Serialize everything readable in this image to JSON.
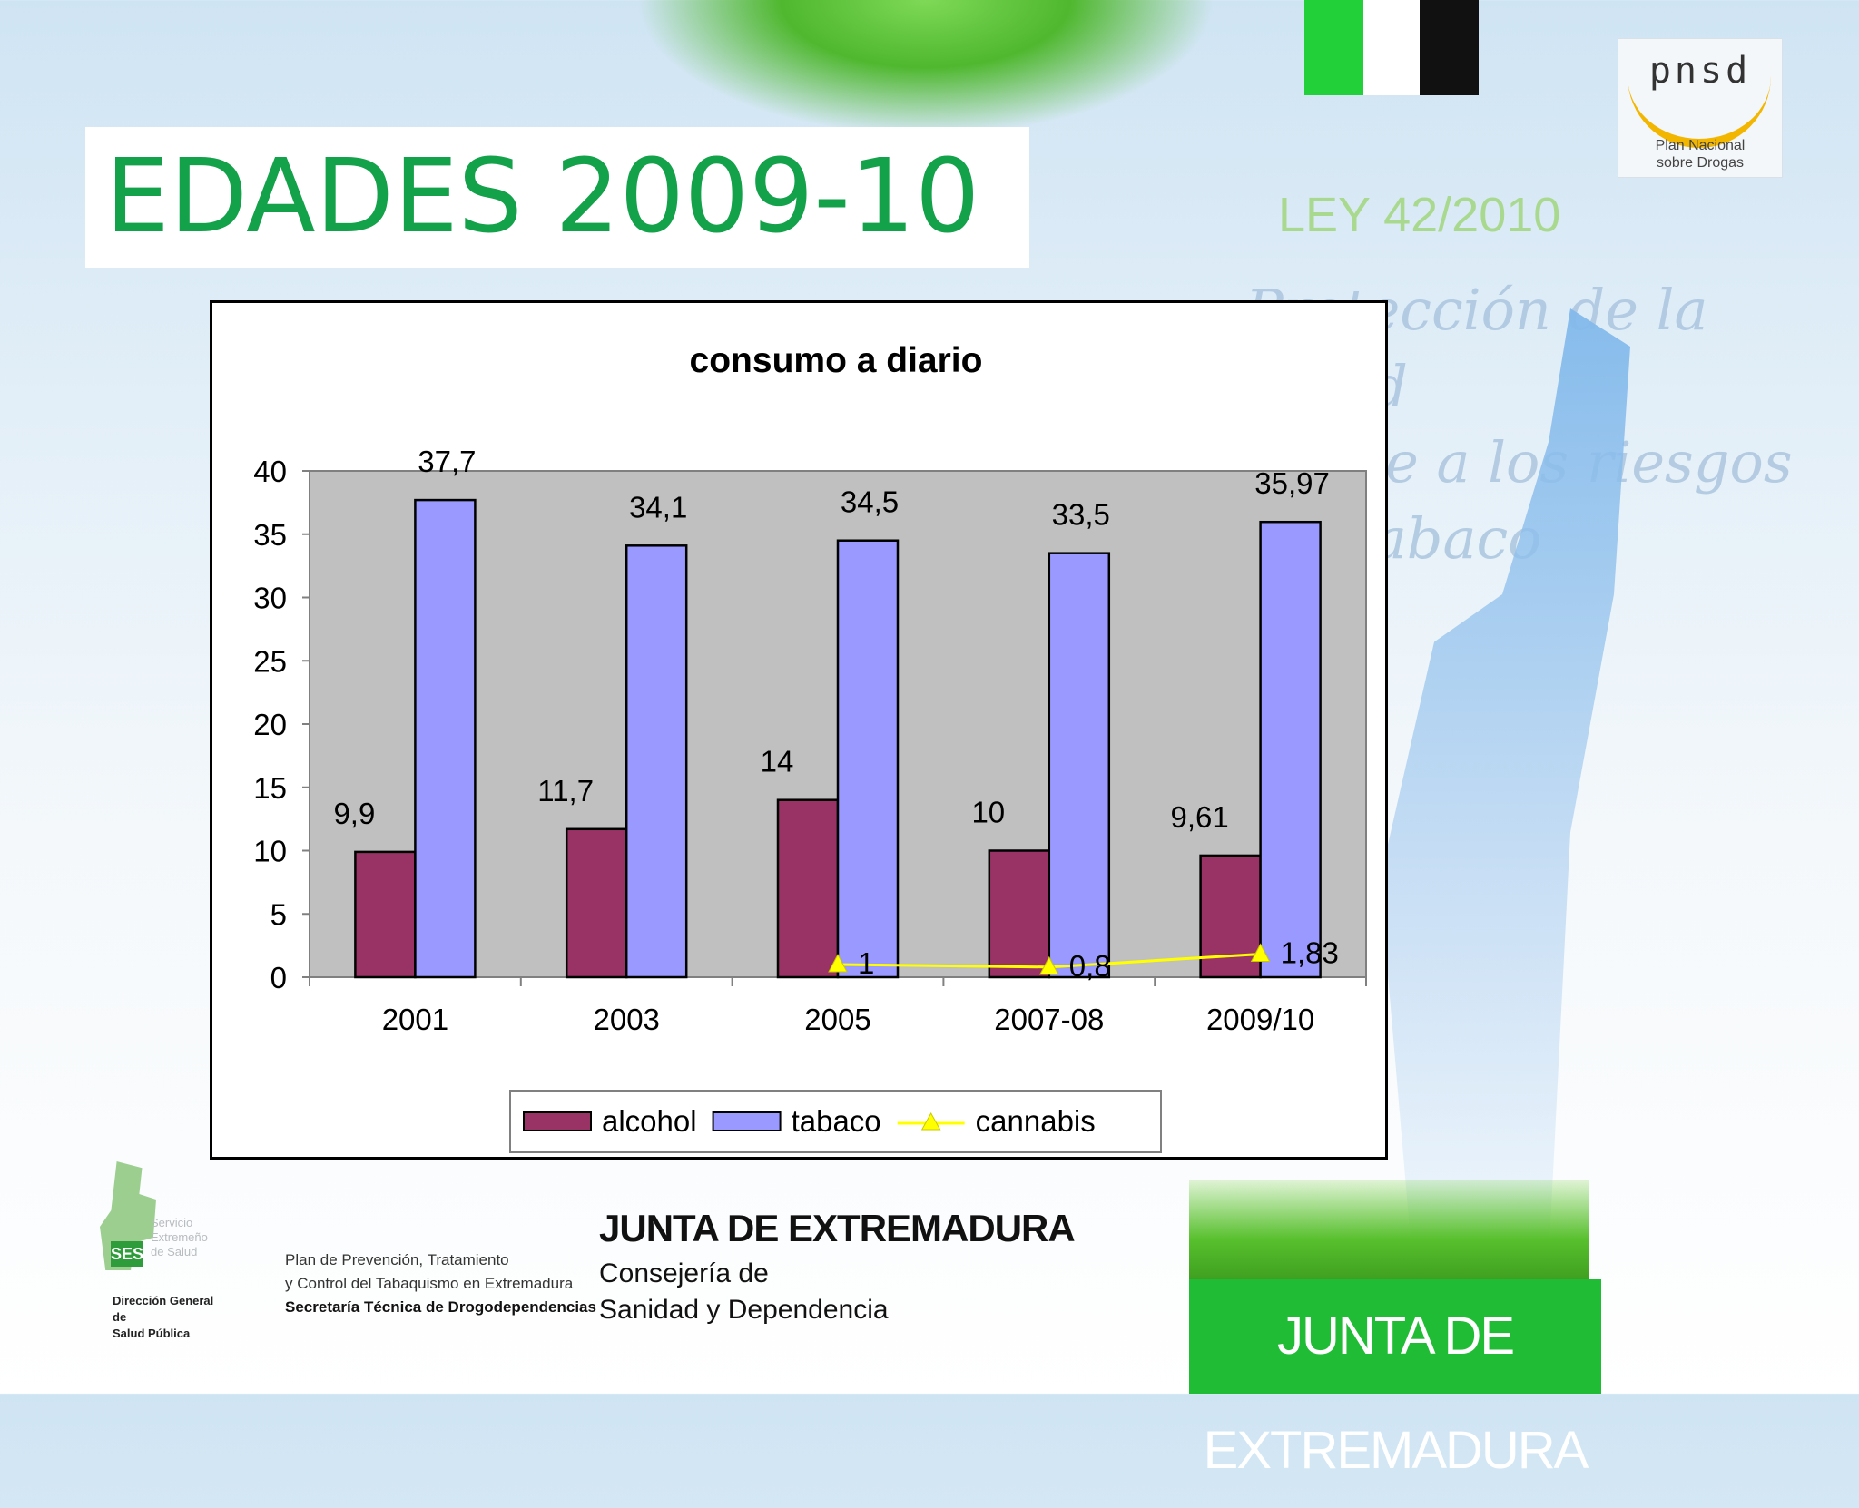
{
  "slide": {
    "title": "EDADES 2009-10"
  },
  "decor": {
    "ley": "LEY 42/2010",
    "script_line1": "Protección de la Salud",
    "script_line2": "frente a los riesgos del tabaco",
    "pnsd_word": "pnsd",
    "pnsd_sub1": "Plan Nacional",
    "pnsd_sub2": "sobre Drogas",
    "junta_banner": "JUNTA DE EXTREMADURA"
  },
  "footer": {
    "ses_badge": "SES",
    "ses_side1": "Servicio",
    "ses_side2": "Extremeño",
    "ses_side3": "de Salud",
    "ses_line1": "Dirección General de",
    "ses_line2": "Salud Pública",
    "plan_line1": "Plan de Prevención, Tratamiento",
    "plan_line2": "y Control del Tabaquismo en Extremadura",
    "plan_line3": "Secretaría Técnica de Drogodependencias",
    "junta_title": "JUNTA DE EXTREMADURA",
    "junta_sub1": "Consejería de",
    "junta_sub2": "Sanidad y Dependencia"
  },
  "chart_data": {
    "type": "bar",
    "title": "consumo a diario",
    "categories": [
      "2001",
      "2003",
      "2005",
      "2007-08",
      "2009/10"
    ],
    "ylim": [
      0,
      40
    ],
    "yticks": [
      0,
      5,
      10,
      15,
      20,
      25,
      30,
      35,
      40
    ],
    "grid": false,
    "plot_background": "#c0c0c0",
    "legend_position": "bottom",
    "series": [
      {
        "name": "alcohol",
        "kind": "bar",
        "color": "#993366",
        "values": [
          9.9,
          11.7,
          14,
          10,
          9.61
        ],
        "labels": [
          "9,9",
          "11,7",
          "14",
          "10",
          "9,61"
        ]
      },
      {
        "name": "tabaco",
        "kind": "bar",
        "color": "#9999ff",
        "values": [
          37.7,
          34.1,
          34.5,
          33.5,
          35.97
        ],
        "labels": [
          "37,7",
          "34,1",
          "34,5",
          "33,5",
          "35,97"
        ]
      },
      {
        "name": "cannabis",
        "kind": "line",
        "color": "#ffff00",
        "marker": "triangle",
        "values": [
          null,
          null,
          1,
          0.8,
          1.83
        ],
        "labels": [
          "",
          "",
          "1",
          "0,8",
          "1,83"
        ]
      }
    ]
  }
}
